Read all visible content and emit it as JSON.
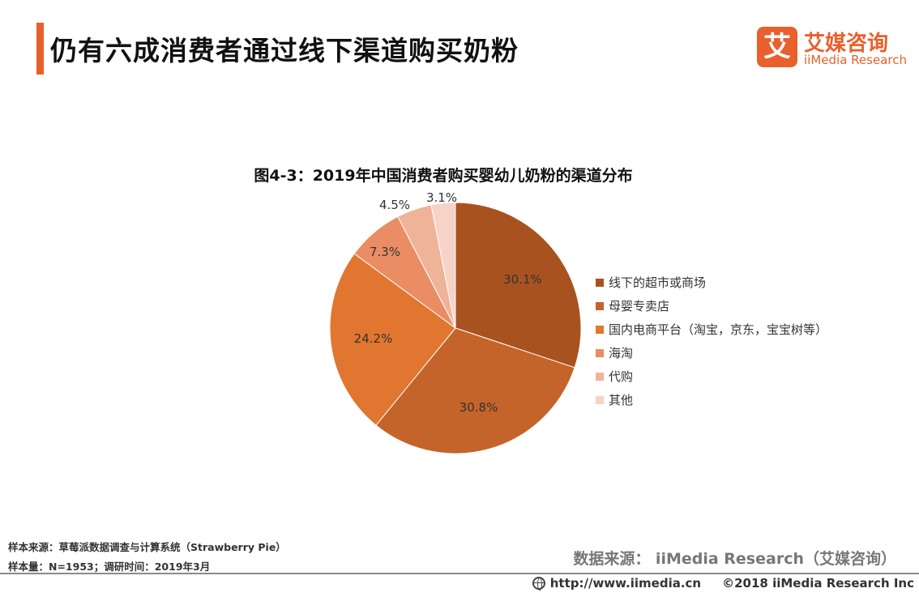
{
  "header": {
    "title": "仍有六成消费者通过线下渠道购买奶粉",
    "accent_color": "#e8602c"
  },
  "logo": {
    "mark": "艾",
    "name_cn": "艾媒咨询",
    "name_en": "iiMedia Research"
  },
  "chart_data": {
    "type": "pie",
    "title": "图4-3：2019年中国消费者购买婴幼儿奶粉的渠道分布",
    "categories": [
      "线下的超市或商场",
      "母婴专卖店",
      "国内电商平台（淘宝，京东，宝宝树等）",
      "海淘",
      "代购",
      "其他"
    ],
    "values": [
      30.1,
      30.8,
      24.2,
      7.3,
      4.5,
      3.1
    ],
    "value_labels": [
      "30.1%",
      "30.8%",
      "24.2%",
      "7.3%",
      "4.5%",
      "3.1%"
    ],
    "colors": [
      "#a8531f",
      "#c4642a",
      "#e0762f",
      "#ea8d64",
      "#efb39a",
      "#f6d3c6"
    ],
    "start_angle": "12 o'clock",
    "direction": "clockwise",
    "legend_position": "right"
  },
  "footnotes": {
    "sample_source": "样本来源：草莓派数据调查与计算系统（Strawberry   Pie）",
    "sample_size": "样本量：N=1953；调研时间：2019年3月"
  },
  "data_source": "数据来源：  iiMedia Research（艾媒咨询）",
  "footer": {
    "url": "http://www.iimedia.cn",
    "copyright": "©2018  iiMedia Research  Inc"
  }
}
